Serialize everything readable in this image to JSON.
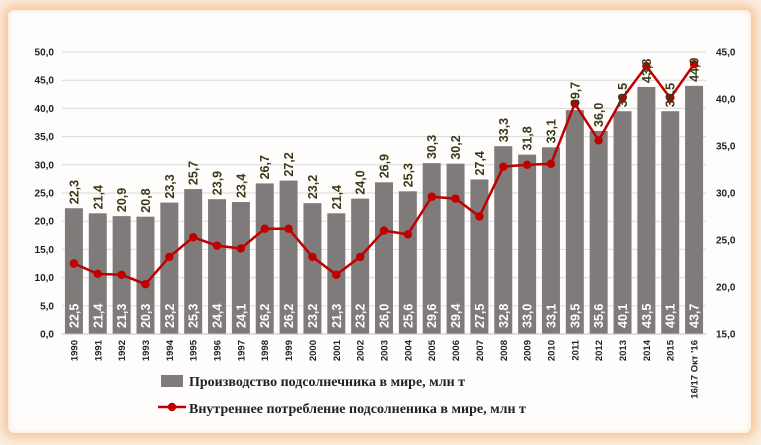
{
  "chart_data": {
    "type": "bar",
    "categories": [
      "1990",
      "1991",
      "1992",
      "1993",
      "1994",
      "1995",
      "1996",
      "1997",
      "1998",
      "1999",
      "2000",
      "2001",
      "2002",
      "2003",
      "2004",
      "2005",
      "2006",
      "2007",
      "2008",
      "2009",
      "2010",
      "2011",
      "2012",
      "2013",
      "2014",
      "2015",
      "16/17 Окт '16"
    ],
    "series": [
      {
        "name": "Производство подсолнечника в мире, млн т",
        "type": "bar",
        "axis": "left",
        "color": "#7f7b7b",
        "values": [
          22.3,
          21.4,
          20.9,
          20.8,
          23.3,
          25.7,
          23.9,
          23.4,
          26.7,
          27.2,
          23.2,
          21.4,
          24.0,
          26.9,
          25.3,
          30.3,
          30.2,
          27.4,
          33.3,
          31.8,
          33.1,
          39.7,
          36.0,
          39.5,
          43.8,
          39.5,
          44.0
        ],
        "labels": [
          "22,3",
          "21,4",
          "20,9",
          "20,8",
          "23,3",
          "25,7",
          "23,9",
          "23,4",
          "26,7",
          "27,2",
          "23,2",
          "21,4",
          "24,0",
          "26,9",
          "25,3",
          "30,3",
          "30,2",
          "27,4",
          "33,3",
          "31,8",
          "33,1",
          "39,7",
          "36,0",
          "39,5",
          "43,8",
          "39,5",
          "44,0"
        ]
      },
      {
        "name": "Внутреннее потребление подсолненика в мире, млн т",
        "type": "line",
        "axis": "right",
        "color": "#c00000",
        "values": [
          22.5,
          21.4,
          21.3,
          20.3,
          23.2,
          25.3,
          24.4,
          24.1,
          26.2,
          26.2,
          23.2,
          21.3,
          23.2,
          26.0,
          25.6,
          29.6,
          29.4,
          27.5,
          32.8,
          33.0,
          33.1,
          39.5,
          35.6,
          40.1,
          43.5,
          40.1,
          43.7
        ],
        "labels": [
          "22,5",
          "21,4",
          "21,3",
          "20,3",
          "23,2",
          "25,3",
          "24,4",
          "24,1",
          "26,2",
          "26,2",
          "23,2",
          "21,3",
          "23,2",
          "26,0",
          "25,6",
          "29,6",
          "29,4",
          "27,5",
          "32,8",
          "33,0",
          "33,1",
          "39,5",
          "35,6",
          "40,1",
          "43,5",
          "40,1",
          "43,7"
        ]
      }
    ],
    "y_left": {
      "min": 0,
      "max": 50,
      "step": 5,
      "ticks": [
        "0,0",
        "5,0",
        "10,0",
        "15,0",
        "20,0",
        "25,0",
        "30,0",
        "35,0",
        "40,0",
        "45,0",
        "50,0"
      ]
    },
    "y_right": {
      "min": 15,
      "max": 45,
      "step": 5,
      "ticks": [
        "15,0",
        "20,0",
        "25,0",
        "30,0",
        "35,0",
        "40,0",
        "45,0"
      ]
    },
    "grid": true,
    "legend_position": "bottom"
  },
  "legend": {
    "bar_label": "Производство подсолнечника в мире, млн т",
    "line_label": "Внутреннее потребление подсолненика в мире, млн т"
  }
}
